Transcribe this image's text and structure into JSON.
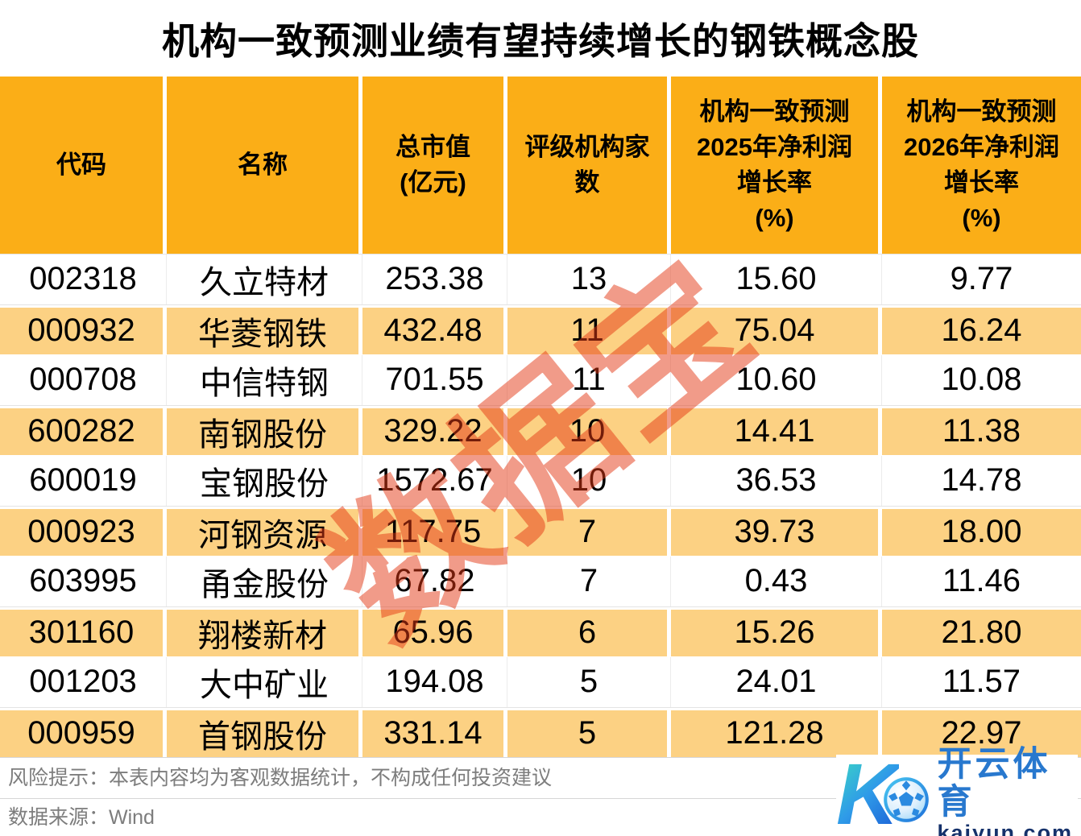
{
  "title": "机构一致预测业绩有望持续增长的钢铁概念股",
  "watermark": "数据宝",
  "table": {
    "columns": [
      {
        "key": "code",
        "label": "代码"
      },
      {
        "key": "name",
        "label": "名称"
      },
      {
        "key": "cap",
        "label": "总市值\n(亿元)"
      },
      {
        "key": "agencies",
        "label": "评级机构家\n数"
      },
      {
        "key": "g2025",
        "label": "机构一致预测\n2025年净利润\n增长率\n(%)"
      },
      {
        "key": "g2026",
        "label": "机构一致预测\n2026年净利润\n增长率\n(%)"
      }
    ],
    "rows": [
      {
        "code": "002318",
        "name": "久立特材",
        "cap": "253.38",
        "agencies": "13",
        "g2025": "15.60",
        "g2026": "9.77"
      },
      {
        "code": "000932",
        "name": "华菱钢铁",
        "cap": "432.48",
        "agencies": "11",
        "g2025": "75.04",
        "g2026": "16.24"
      },
      {
        "code": "000708",
        "name": "中信特钢",
        "cap": "701.55",
        "agencies": "11",
        "g2025": "10.60",
        "g2026": "10.08"
      },
      {
        "code": "600282",
        "name": "南钢股份",
        "cap": "329.22",
        "agencies": "10",
        "g2025": "14.41",
        "g2026": "11.38"
      },
      {
        "code": "600019",
        "name": "宝钢股份",
        "cap": "1572.67",
        "agencies": "10",
        "g2025": "36.53",
        "g2026": "14.78"
      },
      {
        "code": "000923",
        "name": "河钢资源",
        "cap": "117.75",
        "agencies": "7",
        "g2025": "39.73",
        "g2026": "18.00"
      },
      {
        "code": "603995",
        "name": "甬金股份",
        "cap": "67.82",
        "agencies": "7",
        "g2025": "0.43",
        "g2026": "11.46"
      },
      {
        "code": "301160",
        "name": "翔楼新材",
        "cap": "65.96",
        "agencies": "6",
        "g2025": "15.26",
        "g2026": "21.80"
      },
      {
        "code": "001203",
        "name": "大中矿业",
        "cap": "194.08",
        "agencies": "5",
        "g2025": "24.01",
        "g2026": "11.57"
      },
      {
        "code": "000959",
        "name": "首钢股份",
        "cap": "331.14",
        "agencies": "5",
        "g2025": "121.28",
        "g2026": "22.97"
      }
    ]
  },
  "chart_data": {
    "type": "table",
    "title": "机构一致预测业绩有望持续增长的钢铁概念股",
    "columns": [
      "代码",
      "名称",
      "总市值(亿元)",
      "评级机构家数",
      "机构一致预测2025年净利润增长率(%)",
      "机构一致预测2026年净利润增长率(%)"
    ],
    "rows": [
      [
        "002318",
        "久立特材",
        253.38,
        13,
        15.6,
        9.77
      ],
      [
        "000932",
        "华菱钢铁",
        432.48,
        11,
        75.04,
        16.24
      ],
      [
        "000708",
        "中信特钢",
        701.55,
        11,
        10.6,
        10.08
      ],
      [
        "600282",
        "南钢股份",
        329.22,
        10,
        14.41,
        11.38
      ],
      [
        "600019",
        "宝钢股份",
        1572.67,
        10,
        36.53,
        14.78
      ],
      [
        "000923",
        "河钢资源",
        117.75,
        7,
        39.73,
        18.0
      ],
      [
        "603995",
        "甬金股份",
        67.82,
        7,
        0.43,
        11.46
      ],
      [
        "301160",
        "翔楼新材",
        65.96,
        6,
        15.26,
        21.8
      ],
      [
        "001203",
        "大中矿业",
        194.08,
        5,
        24.01,
        11.57
      ],
      [
        "000959",
        "首钢股份",
        331.14,
        5,
        121.28,
        22.97
      ]
    ]
  },
  "footer": {
    "risk": "风险提示：本表内容均为客观数据统计，不构成任何投资建议",
    "source": "数据来源：Wind"
  },
  "logo": {
    "mark": "K",
    "brand": "开云体育",
    "domain": "kaiyun.com"
  },
  "colors": {
    "header_orange": "#fbae17",
    "stripe_orange": "#fcd183",
    "watermark_red": "rgba(227,55,20,0.5)",
    "footer_gray": "#7d7d7d",
    "logo_blue": "#2878ce",
    "logo_navy": "#15316b"
  }
}
